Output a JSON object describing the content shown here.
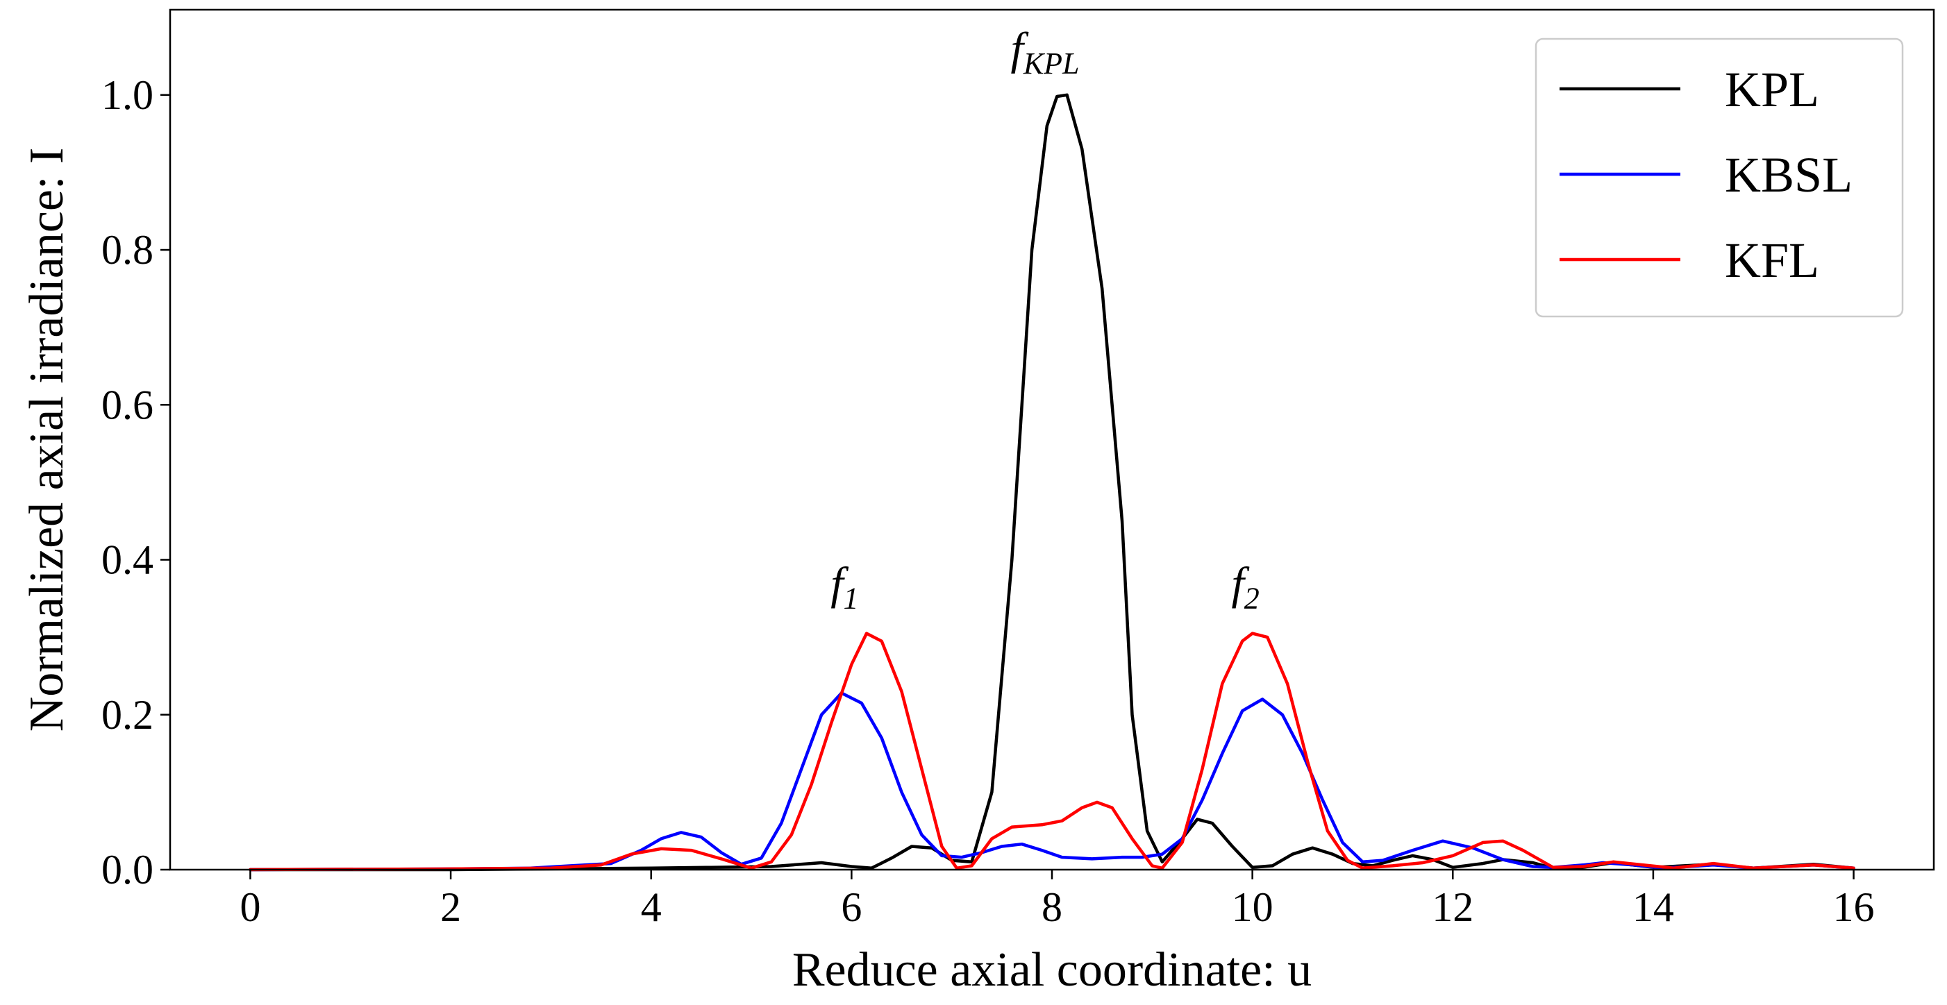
{
  "chart_data": {
    "type": "line",
    "xlabel": "Reduce axial coordinate: u",
    "ylabel": "Normalized axial irradiance: I",
    "xlim": [
      -0.8,
      16.8
    ],
    "ylim": [
      0,
      1.11
    ],
    "xticks": [
      0,
      2,
      4,
      6,
      8,
      10,
      12,
      14,
      16
    ],
    "yticks": [
      0.0,
      0.2,
      0.4,
      0.6,
      0.8,
      1.0
    ],
    "xtick_labels": [
      "0",
      "2",
      "4",
      "6",
      "8",
      "10",
      "12",
      "14",
      "16"
    ],
    "ytick_labels": [
      "0.0",
      "0.2",
      "0.4",
      "0.6",
      "0.8",
      "1.0"
    ],
    "grid": false,
    "legend_position": "top-right",
    "annotations": [
      {
        "base": "f",
        "sub": "1",
        "x": 6.0,
        "y": 0.35
      },
      {
        "base": "f",
        "sub": "KPL",
        "x": 8.0,
        "y": 1.04
      },
      {
        "base": "f",
        "sub": "2",
        "x": 10.0,
        "y": 0.35
      }
    ],
    "series": [
      {
        "name": "KPL",
        "color": "#000000",
        "points": [
          [
            0,
            0
          ],
          [
            2,
            0
          ],
          [
            3,
            0.001
          ],
          [
            4,
            0.002
          ],
          [
            4.6,
            0.003
          ],
          [
            5.2,
            0.004
          ],
          [
            5.7,
            0.009
          ],
          [
            6.0,
            0.004
          ],
          [
            6.2,
            0.002
          ],
          [
            6.4,
            0.015
          ],
          [
            6.6,
            0.03
          ],
          [
            6.8,
            0.028
          ],
          [
            7.0,
            0.012
          ],
          [
            7.2,
            0.01
          ],
          [
            7.4,
            0.1
          ],
          [
            7.6,
            0.4
          ],
          [
            7.8,
            0.8
          ],
          [
            7.95,
            0.96
          ],
          [
            8.05,
            0.998
          ],
          [
            8.15,
            1.0
          ],
          [
            8.3,
            0.93
          ],
          [
            8.5,
            0.75
          ],
          [
            8.7,
            0.45
          ],
          [
            8.8,
            0.2
          ],
          [
            8.95,
            0.05
          ],
          [
            9.1,
            0.01
          ],
          [
            9.3,
            0.04
          ],
          [
            9.45,
            0.065
          ],
          [
            9.6,
            0.06
          ],
          [
            9.8,
            0.03
          ],
          [
            10.0,
            0.003
          ],
          [
            10.2,
            0.005
          ],
          [
            10.4,
            0.02
          ],
          [
            10.6,
            0.028
          ],
          [
            10.8,
            0.02
          ],
          [
            11.0,
            0.008
          ],
          [
            11.2,
            0.005
          ],
          [
            11.4,
            0.012
          ],
          [
            11.6,
            0.018
          ],
          [
            11.8,
            0.013
          ],
          [
            12.0,
            0.003
          ],
          [
            12.3,
            0.008
          ],
          [
            12.5,
            0.013
          ],
          [
            12.8,
            0.009
          ],
          [
            13.0,
            0.002
          ],
          [
            13.3,
            0.003
          ],
          [
            13.6,
            0.009
          ],
          [
            14.0,
            0.003
          ],
          [
            14.6,
            0.007
          ],
          [
            15.0,
            0.002
          ],
          [
            15.6,
            0.007
          ],
          [
            16.0,
            0.002
          ]
        ]
      },
      {
        "name": "KBSL",
        "color": "#0000ff",
        "points": [
          [
            0,
            0
          ],
          [
            2,
            0.001
          ],
          [
            2.8,
            0.002
          ],
          [
            3.2,
            0.005
          ],
          [
            3.6,
            0.008
          ],
          [
            3.9,
            0.025
          ],
          [
            4.1,
            0.04
          ],
          [
            4.3,
            0.048
          ],
          [
            4.5,
            0.042
          ],
          [
            4.7,
            0.022
          ],
          [
            4.9,
            0.007
          ],
          [
            5.1,
            0.015
          ],
          [
            5.3,
            0.06
          ],
          [
            5.5,
            0.13
          ],
          [
            5.7,
            0.2
          ],
          [
            5.9,
            0.228
          ],
          [
            6.1,
            0.215
          ],
          [
            6.3,
            0.17
          ],
          [
            6.5,
            0.1
          ],
          [
            6.7,
            0.045
          ],
          [
            6.9,
            0.018
          ],
          [
            7.1,
            0.016
          ],
          [
            7.3,
            0.022
          ],
          [
            7.5,
            0.03
          ],
          [
            7.7,
            0.033
          ],
          [
            7.9,
            0.025
          ],
          [
            8.1,
            0.016
          ],
          [
            8.4,
            0.014
          ],
          [
            8.7,
            0.016
          ],
          [
            8.9,
            0.016
          ],
          [
            9.1,
            0.02
          ],
          [
            9.3,
            0.04
          ],
          [
            9.5,
            0.09
          ],
          [
            9.7,
            0.15
          ],
          [
            9.9,
            0.205
          ],
          [
            10.1,
            0.22
          ],
          [
            10.3,
            0.2
          ],
          [
            10.5,
            0.15
          ],
          [
            10.7,
            0.09
          ],
          [
            10.9,
            0.035
          ],
          [
            11.1,
            0.01
          ],
          [
            11.3,
            0.012
          ],
          [
            11.6,
            0.025
          ],
          [
            11.9,
            0.037
          ],
          [
            12.2,
            0.028
          ],
          [
            12.5,
            0.013
          ],
          [
            12.8,
            0.004
          ],
          [
            13.0,
            0.003
          ],
          [
            13.3,
            0.006
          ],
          [
            13.5,
            0.009
          ],
          [
            13.8,
            0.006
          ],
          [
            14.1,
            0.002
          ],
          [
            14.6,
            0.006
          ],
          [
            15.0,
            0.002
          ],
          [
            15.6,
            0.006
          ],
          [
            16.0,
            0.002
          ]
        ]
      },
      {
        "name": "KFL",
        "color": "#ff0000",
        "points": [
          [
            0,
            0
          ],
          [
            2,
            0.001
          ],
          [
            3,
            0.002
          ],
          [
            3.5,
            0.006
          ],
          [
            3.8,
            0.02
          ],
          [
            4.1,
            0.027
          ],
          [
            4.4,
            0.025
          ],
          [
            4.7,
            0.014
          ],
          [
            5.0,
            0.002
          ],
          [
            5.2,
            0.01
          ],
          [
            5.4,
            0.045
          ],
          [
            5.6,
            0.11
          ],
          [
            5.8,
            0.19
          ],
          [
            6.0,
            0.265
          ],
          [
            6.15,
            0.305
          ],
          [
            6.3,
            0.295
          ],
          [
            6.5,
            0.23
          ],
          [
            6.7,
            0.13
          ],
          [
            6.9,
            0.03
          ],
          [
            7.05,
            0.002
          ],
          [
            7.2,
            0.005
          ],
          [
            7.4,
            0.04
          ],
          [
            7.6,
            0.055
          ],
          [
            7.9,
            0.058
          ],
          [
            8.1,
            0.063
          ],
          [
            8.3,
            0.08
          ],
          [
            8.45,
            0.087
          ],
          [
            8.6,
            0.08
          ],
          [
            8.8,
            0.04
          ],
          [
            9.0,
            0.005
          ],
          [
            9.1,
            0.002
          ],
          [
            9.3,
            0.035
          ],
          [
            9.5,
            0.13
          ],
          [
            9.7,
            0.24
          ],
          [
            9.9,
            0.295
          ],
          [
            10.0,
            0.305
          ],
          [
            10.15,
            0.3
          ],
          [
            10.35,
            0.24
          ],
          [
            10.55,
            0.14
          ],
          [
            10.75,
            0.05
          ],
          [
            10.95,
            0.012
          ],
          [
            11.1,
            0.002
          ],
          [
            11.4,
            0.005
          ],
          [
            11.7,
            0.009
          ],
          [
            12.0,
            0.018
          ],
          [
            12.3,
            0.035
          ],
          [
            12.5,
            0.037
          ],
          [
            12.7,
            0.025
          ],
          [
            13.0,
            0.003
          ],
          [
            13.3,
            0.004
          ],
          [
            13.6,
            0.01
          ],
          [
            13.9,
            0.006
          ],
          [
            14.2,
            0.002
          ],
          [
            14.6,
            0.008
          ],
          [
            15.0,
            0.002
          ],
          [
            15.6,
            0.006
          ],
          [
            16.0,
            0.002
          ]
        ]
      }
    ]
  }
}
